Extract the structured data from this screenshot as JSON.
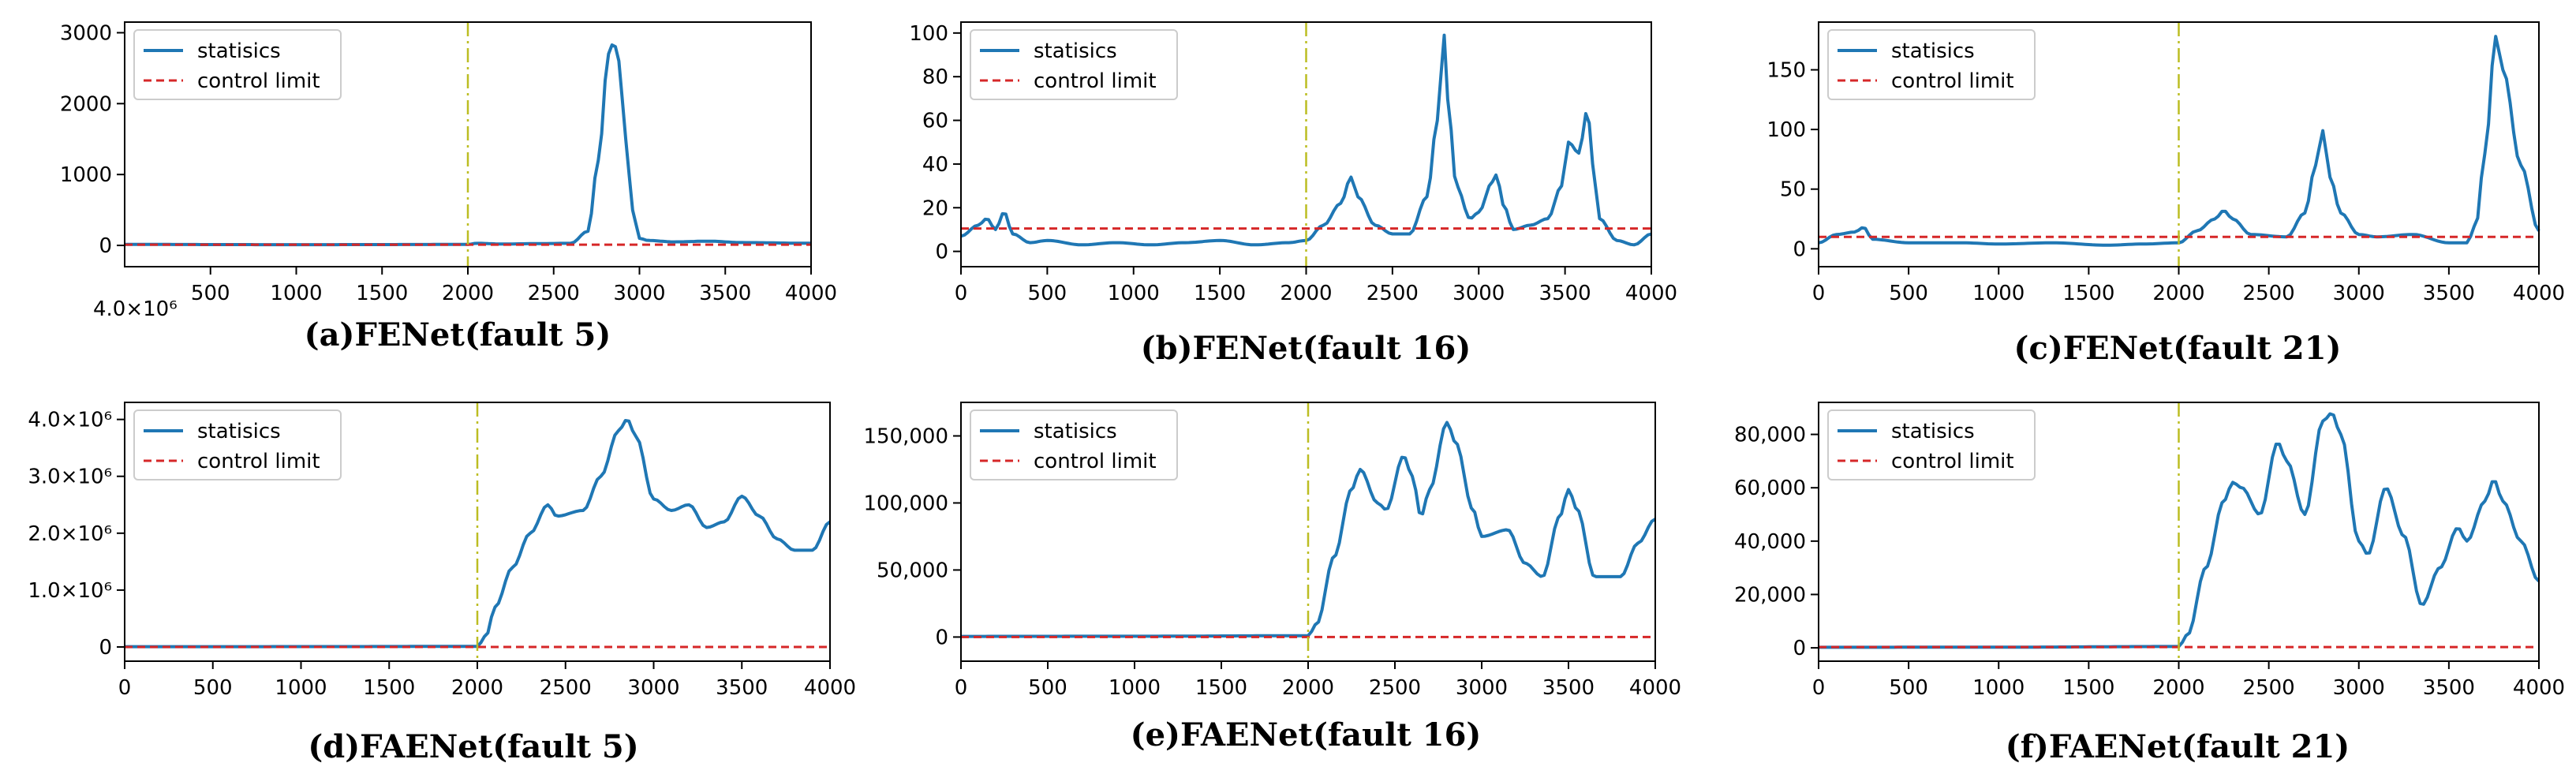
{
  "figure": {
    "colors": {
      "statistic": "#1f77b4",
      "limit": "#d62728",
      "fault_marker": "#bcbd22",
      "axis": "#000000"
    }
  },
  "chart_data": [
    {
      "type": "line",
      "caption": "(a)FENet(fault 5)",
      "legend": [
        "statisics",
        "control limit"
      ],
      "legend_position": "top-left",
      "xlim": [
        0,
        4000
      ],
      "ylim": [
        -300,
        3150
      ],
      "x_ticks": [
        500,
        1000,
        1500,
        2000,
        2500,
        3000,
        3500,
        4000
      ],
      "x_tick_labels": [
        "500",
        "1000",
        "1500",
        "2000",
        "2500",
        "3000",
        "3500",
        "4000"
      ],
      "x_offset_label": "4.0×10⁶",
      "y_ticks": [
        0,
        1000,
        2000,
        3000
      ],
      "y_tick_labels": [
        "0",
        "1000",
        "2000",
        "3000"
      ],
      "fault_line_x": 2000,
      "control_limit": 10,
      "statistic_keypoints": [
        [
          0,
          15
        ],
        [
          500,
          12
        ],
        [
          1000,
          10
        ],
        [
          1500,
          12
        ],
        [
          2000,
          14
        ],
        [
          2050,
          30
        ],
        [
          2200,
          20
        ],
        [
          2400,
          25
        ],
        [
          2600,
          30
        ],
        [
          2700,
          200
        ],
        [
          2760,
          1200
        ],
        [
          2820,
          2700
        ],
        [
          2850,
          2870
        ],
        [
          2880,
          2600
        ],
        [
          2920,
          1500
        ],
        [
          2960,
          500
        ],
        [
          3000,
          100
        ],
        [
          3050,
          70
        ],
        [
          3200,
          50
        ],
        [
          3400,
          60
        ],
        [
          3600,
          40
        ],
        [
          4000,
          30
        ]
      ]
    },
    {
      "type": "line",
      "caption": "(b)FENet(fault 16)",
      "legend": [
        "statisics",
        "control limit"
      ],
      "legend_position": "top-left",
      "xlim": [
        0,
        4000
      ],
      "ylim": [
        -7,
        105
      ],
      "x_ticks": [
        0,
        500,
        1000,
        1500,
        2000,
        2500,
        3000,
        3500,
        4000
      ],
      "x_tick_labels": [
        "0",
        "500",
        "1000",
        "1500",
        "2000",
        "2500",
        "3000",
        "3500",
        "4000"
      ],
      "y_ticks": [
        0,
        20,
        40,
        60,
        80,
        100
      ],
      "y_tick_labels": [
        "0",
        "20",
        "40",
        "60",
        "80",
        "100"
      ],
      "fault_line_x": 2000,
      "control_limit": 10.5,
      "statistic_keypoints": [
        [
          0,
          7
        ],
        [
          100,
          12
        ],
        [
          150,
          15
        ],
        [
          200,
          10
        ],
        [
          250,
          18
        ],
        [
          300,
          8
        ],
        [
          400,
          4
        ],
        [
          500,
          5
        ],
        [
          700,
          3
        ],
        [
          900,
          4
        ],
        [
          1100,
          3
        ],
        [
          1300,
          4
        ],
        [
          1500,
          5
        ],
        [
          1700,
          3
        ],
        [
          1900,
          4
        ],
        [
          2000,
          5
        ],
        [
          2100,
          12
        ],
        [
          2200,
          22
        ],
        [
          2260,
          34
        ],
        [
          2300,
          25
        ],
        [
          2400,
          12
        ],
        [
          2500,
          8
        ],
        [
          2600,
          8
        ],
        [
          2700,
          25
        ],
        [
          2760,
          60
        ],
        [
          2800,
          99
        ],
        [
          2830,
          60
        ],
        [
          2870,
          30
        ],
        [
          2950,
          15
        ],
        [
          3000,
          18
        ],
        [
          3080,
          32
        ],
        [
          3100,
          35
        ],
        [
          3150,
          20
        ],
        [
          3200,
          10
        ],
        [
          3300,
          12
        ],
        [
          3400,
          15
        ],
        [
          3480,
          30
        ],
        [
          3520,
          50
        ],
        [
          3580,
          45
        ],
        [
          3630,
          65
        ],
        [
          3660,
          40
        ],
        [
          3700,
          15
        ],
        [
          3800,
          5
        ],
        [
          3900,
          3
        ],
        [
          4000,
          8
        ]
      ]
    },
    {
      "type": "line",
      "caption": "(c)FENet(fault 21)",
      "legend": [
        "statisics",
        "control limit"
      ],
      "legend_position": "top-left",
      "xlim": [
        0,
        4000
      ],
      "ylim": [
        -15,
        190
      ],
      "x_ticks": [
        0,
        500,
        1000,
        1500,
        2000,
        2500,
        3000,
        3500,
        4000
      ],
      "x_tick_labels": [
        "0",
        "500",
        "1000",
        "1500",
        "2000",
        "2500",
        "3000",
        "3500",
        "4000"
      ],
      "y_ticks": [
        0,
        50,
        100,
        150
      ],
      "y_tick_labels": [
        "0",
        "50",
        "100",
        "150"
      ],
      "fault_line_x": 2000,
      "control_limit": 10,
      "statistic_keypoints": [
        [
          0,
          5
        ],
        [
          100,
          12
        ],
        [
          200,
          14
        ],
        [
          250,
          18
        ],
        [
          300,
          8
        ],
        [
          500,
          5
        ],
        [
          800,
          5
        ],
        [
          1000,
          4
        ],
        [
          1300,
          5
        ],
        [
          1600,
          3
        ],
        [
          1800,
          4
        ],
        [
          2000,
          5
        ],
        [
          2100,
          15
        ],
        [
          2200,
          25
        ],
        [
          2250,
          32
        ],
        [
          2300,
          25
        ],
        [
          2400,
          12
        ],
        [
          2600,
          10
        ],
        [
          2700,
          30
        ],
        [
          2760,
          70
        ],
        [
          2800,
          99
        ],
        [
          2840,
          60
        ],
        [
          2900,
          30
        ],
        [
          3000,
          12
        ],
        [
          3100,
          10
        ],
        [
          3300,
          12
        ],
        [
          3500,
          5
        ],
        [
          3600,
          5
        ],
        [
          3650,
          20
        ],
        [
          3700,
          80
        ],
        [
          3760,
          178
        ],
        [
          3800,
          150
        ],
        [
          3900,
          70
        ],
        [
          4000,
          15
        ]
      ]
    },
    {
      "type": "line",
      "caption": "(d)FAENet(fault 5)",
      "legend": [
        "statisics",
        "control limit"
      ],
      "legend_position": "top-left",
      "xlim": [
        0,
        4000
      ],
      "ylim": [
        -250000,
        4300000
      ],
      "x_ticks": [
        0,
        500,
        1000,
        1500,
        2000,
        2500,
        3000,
        3500,
        4000
      ],
      "x_tick_labels": [
        "0",
        "500",
        "1000",
        "1500",
        "2000",
        "2500",
        "3000",
        "3500",
        "4000"
      ],
      "y_ticks": [
        0,
        1000000,
        2000000,
        3000000,
        4000000
      ],
      "y_tick_labels": [
        "0",
        "1.0×10⁶",
        "2.0×10⁶",
        "3.0×10⁶",
        "4.0×10⁶"
      ],
      "fault_line_x": 2000,
      "control_limit": 0,
      "statistic_keypoints": [
        [
          0,
          5000
        ],
        [
          1000,
          6000
        ],
        [
          2000,
          10000
        ],
        [
          2050,
          200000
        ],
        [
          2100,
          700000
        ],
        [
          2200,
          1400000
        ],
        [
          2300,
          2000000
        ],
        [
          2400,
          2500000
        ],
        [
          2450,
          2300000
        ],
        [
          2600,
          2400000
        ],
        [
          2700,
          3000000
        ],
        [
          2800,
          3800000
        ],
        [
          2850,
          4000000
        ],
        [
          2900,
          3700000
        ],
        [
          3000,
          2600000
        ],
        [
          3100,
          2400000
        ],
        [
          3200,
          2500000
        ],
        [
          3300,
          2100000
        ],
        [
          3400,
          2200000
        ],
        [
          3500,
          2650000
        ],
        [
          3600,
          2300000
        ],
        [
          3700,
          1900000
        ],
        [
          3800,
          1700000
        ],
        [
          3900,
          1700000
        ],
        [
          4000,
          2200000
        ]
      ]
    },
    {
      "type": "line",
      "caption": "(e)FAENet(fault 16)",
      "legend": [
        "statisics",
        "control limit"
      ],
      "legend_position": "top-left",
      "xlim": [
        0,
        4000
      ],
      "ylim": [
        -18000,
        175000
      ],
      "x_ticks": [
        0,
        500,
        1000,
        1500,
        2000,
        2500,
        3000,
        3500,
        4000
      ],
      "x_tick_labels": [
        "0",
        "500",
        "1000",
        "1500",
        "2000",
        "2500",
        "3000",
        "3500",
        "4000"
      ],
      "y_ticks": [
        0,
        50000,
        100000,
        150000
      ],
      "y_tick_labels": [
        "0",
        "50,000",
        "100,000",
        "150,000"
      ],
      "fault_line_x": 2000,
      "control_limit": 0,
      "statistic_keypoints": [
        [
          0,
          500
        ],
        [
          1000,
          600
        ],
        [
          2000,
          1000
        ],
        [
          2050,
          10000
        ],
        [
          2150,
          60000
        ],
        [
          2250,
          110000
        ],
        [
          2300,
          125000
        ],
        [
          2400,
          100000
        ],
        [
          2450,
          95000
        ],
        [
          2550,
          135000
        ],
        [
          2600,
          120000
        ],
        [
          2650,
          90000
        ],
        [
          2700,
          110000
        ],
        [
          2800,
          160000
        ],
        [
          2850,
          145000
        ],
        [
          2950,
          95000
        ],
        [
          3000,
          75000
        ],
        [
          3150,
          80000
        ],
        [
          3250,
          55000
        ],
        [
          3350,
          45000
        ],
        [
          3450,
          90000
        ],
        [
          3500,
          110000
        ],
        [
          3550,
          95000
        ],
        [
          3650,
          45000
        ],
        [
          3800,
          45000
        ],
        [
          3900,
          70000
        ],
        [
          4000,
          88000
        ]
      ]
    },
    {
      "type": "line",
      "caption": "(f)FAENet(fault 21)",
      "legend": [
        "statisics",
        "control limit"
      ],
      "legend_position": "top-left",
      "xlim": [
        0,
        4000
      ],
      "ylim": [
        -5000,
        92000
      ],
      "x_ticks": [
        0,
        500,
        1000,
        1500,
        2000,
        2500,
        3000,
        3500,
        4000
      ],
      "x_tick_labels": [
        "0",
        "500",
        "1000",
        "1500",
        "2000",
        "2500",
        "3000",
        "3500",
        "4000"
      ],
      "y_ticks": [
        0,
        20000,
        40000,
        60000,
        80000
      ],
      "y_tick_labels": [
        "0",
        "20,000",
        "40,000",
        "60,000",
        "80,000"
      ],
      "fault_line_x": 2000,
      "control_limit": 300,
      "statistic_keypoints": [
        [
          0,
          200
        ],
        [
          1000,
          250
        ],
        [
          2000,
          500
        ],
        [
          2050,
          5000
        ],
        [
          2150,
          30000
        ],
        [
          2250,
          55000
        ],
        [
          2300,
          62000
        ],
        [
          2350,
          60000
        ],
        [
          2450,
          50000
        ],
        [
          2550,
          77000
        ],
        [
          2600,
          70000
        ],
        [
          2700,
          50000
        ],
        [
          2800,
          85000
        ],
        [
          2850,
          88000
        ],
        [
          2900,
          80000
        ],
        [
          3000,
          40000
        ],
        [
          3050,
          35000
        ],
        [
          3150,
          60000
        ],
        [
          3250,
          42000
        ],
        [
          3350,
          16000
        ],
        [
          3450,
          30000
        ],
        [
          3550,
          45000
        ],
        [
          3600,
          40000
        ],
        [
          3700,
          55000
        ],
        [
          3750,
          63000
        ],
        [
          3800,
          55000
        ],
        [
          3900,
          40000
        ],
        [
          4000,
          25000
        ]
      ]
    }
  ]
}
